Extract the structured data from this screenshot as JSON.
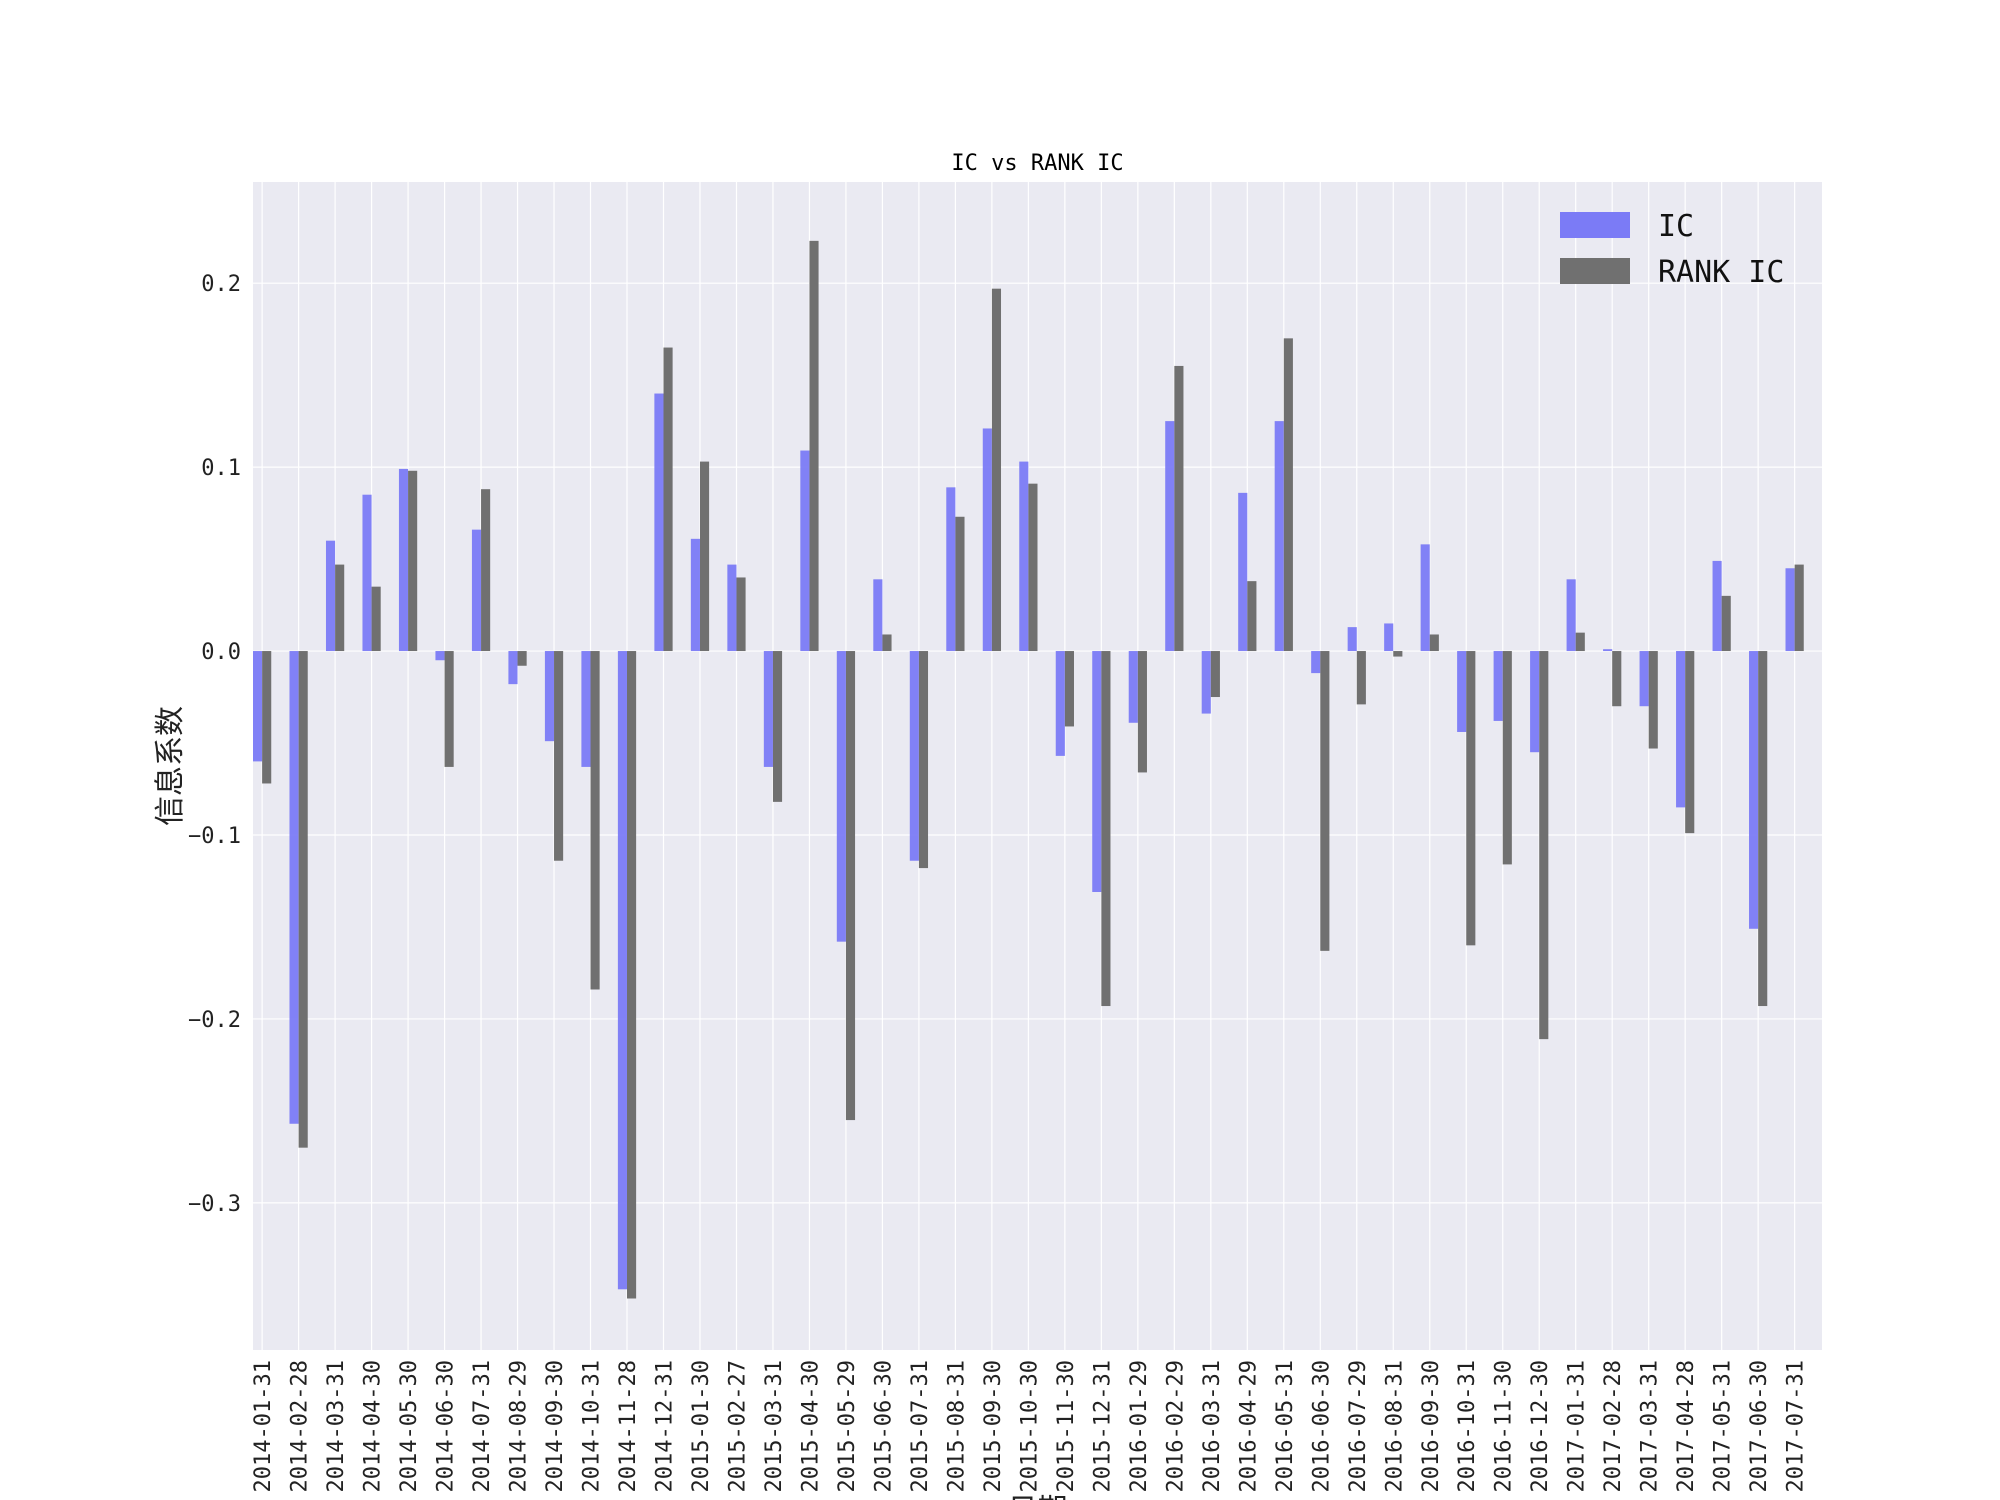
{
  "chart_data": {
    "type": "bar",
    "title": "IC vs RANK IC",
    "xlabel": "日期",
    "ylabel": "信息系数",
    "ylim": [
      -0.38,
      0.255
    ],
    "yticks": [
      -0.3,
      -0.2,
      -0.1,
      0.0,
      0.1,
      0.2
    ],
    "ytick_labels": [
      "−0.3",
      "−0.2",
      "−0.1",
      "0.0",
      "0.1",
      "0.2"
    ],
    "grid": true,
    "legend_position": "top-right",
    "categories": [
      "2014-01-31",
      "2014-02-28",
      "2014-03-31",
      "2014-04-30",
      "2014-05-30",
      "2014-06-30",
      "2014-07-31",
      "2014-08-29",
      "2014-09-30",
      "2014-10-31",
      "2014-11-28",
      "2014-12-31",
      "2015-01-30",
      "2015-02-27",
      "2015-03-31",
      "2015-04-30",
      "2015-05-29",
      "2015-06-30",
      "2015-07-31",
      "2015-08-31",
      "2015-09-30",
      "2015-10-30",
      "2015-11-30",
      "2015-12-31",
      "2016-01-29",
      "2016-02-29",
      "2016-03-31",
      "2016-04-29",
      "2016-05-31",
      "2016-06-30",
      "2016-07-29",
      "2016-08-31",
      "2016-09-30",
      "2016-10-31",
      "2016-11-30",
      "2016-12-30",
      "2017-01-31",
      "2017-02-28",
      "2017-03-31",
      "2017-04-28",
      "2017-05-31",
      "2017-06-30",
      "2017-07-31"
    ],
    "series": [
      {
        "name": "IC",
        "color": "#7b7bf6",
        "values": [
          -0.06,
          -0.257,
          0.06,
          0.085,
          0.099,
          -0.005,
          0.066,
          -0.018,
          -0.049,
          -0.063,
          -0.347,
          0.14,
          0.061,
          0.047,
          -0.063,
          0.109,
          -0.158,
          0.039,
          -0.114,
          0.089,
          0.121,
          0.103,
          -0.057,
          -0.131,
          -0.039,
          0.125,
          -0.034,
          0.086,
          0.125,
          -0.012,
          0.013,
          0.015,
          0.058,
          -0.044,
          -0.038,
          -0.055,
          0.039,
          0.001,
          -0.03,
          -0.085,
          0.049,
          -0.151,
          0.045
        ]
      },
      {
        "name": "RANK IC",
        "color": "#707070",
        "values": [
          -0.072,
          -0.27,
          0.047,
          0.035,
          0.098,
          -0.063,
          0.088,
          -0.008,
          -0.114,
          -0.184,
          -0.352,
          0.165,
          0.103,
          0.04,
          -0.082,
          0.223,
          -0.255,
          0.009,
          -0.118,
          0.073,
          0.197,
          0.091,
          -0.041,
          -0.193,
          -0.066,
          0.155,
          -0.025,
          0.038,
          0.17,
          -0.163,
          -0.029,
          -0.003,
          0.009,
          -0.16,
          -0.116,
          -0.211,
          0.01,
          -0.03,
          -0.053,
          -0.099,
          0.03,
          -0.193,
          0.047
        ]
      }
    ]
  }
}
